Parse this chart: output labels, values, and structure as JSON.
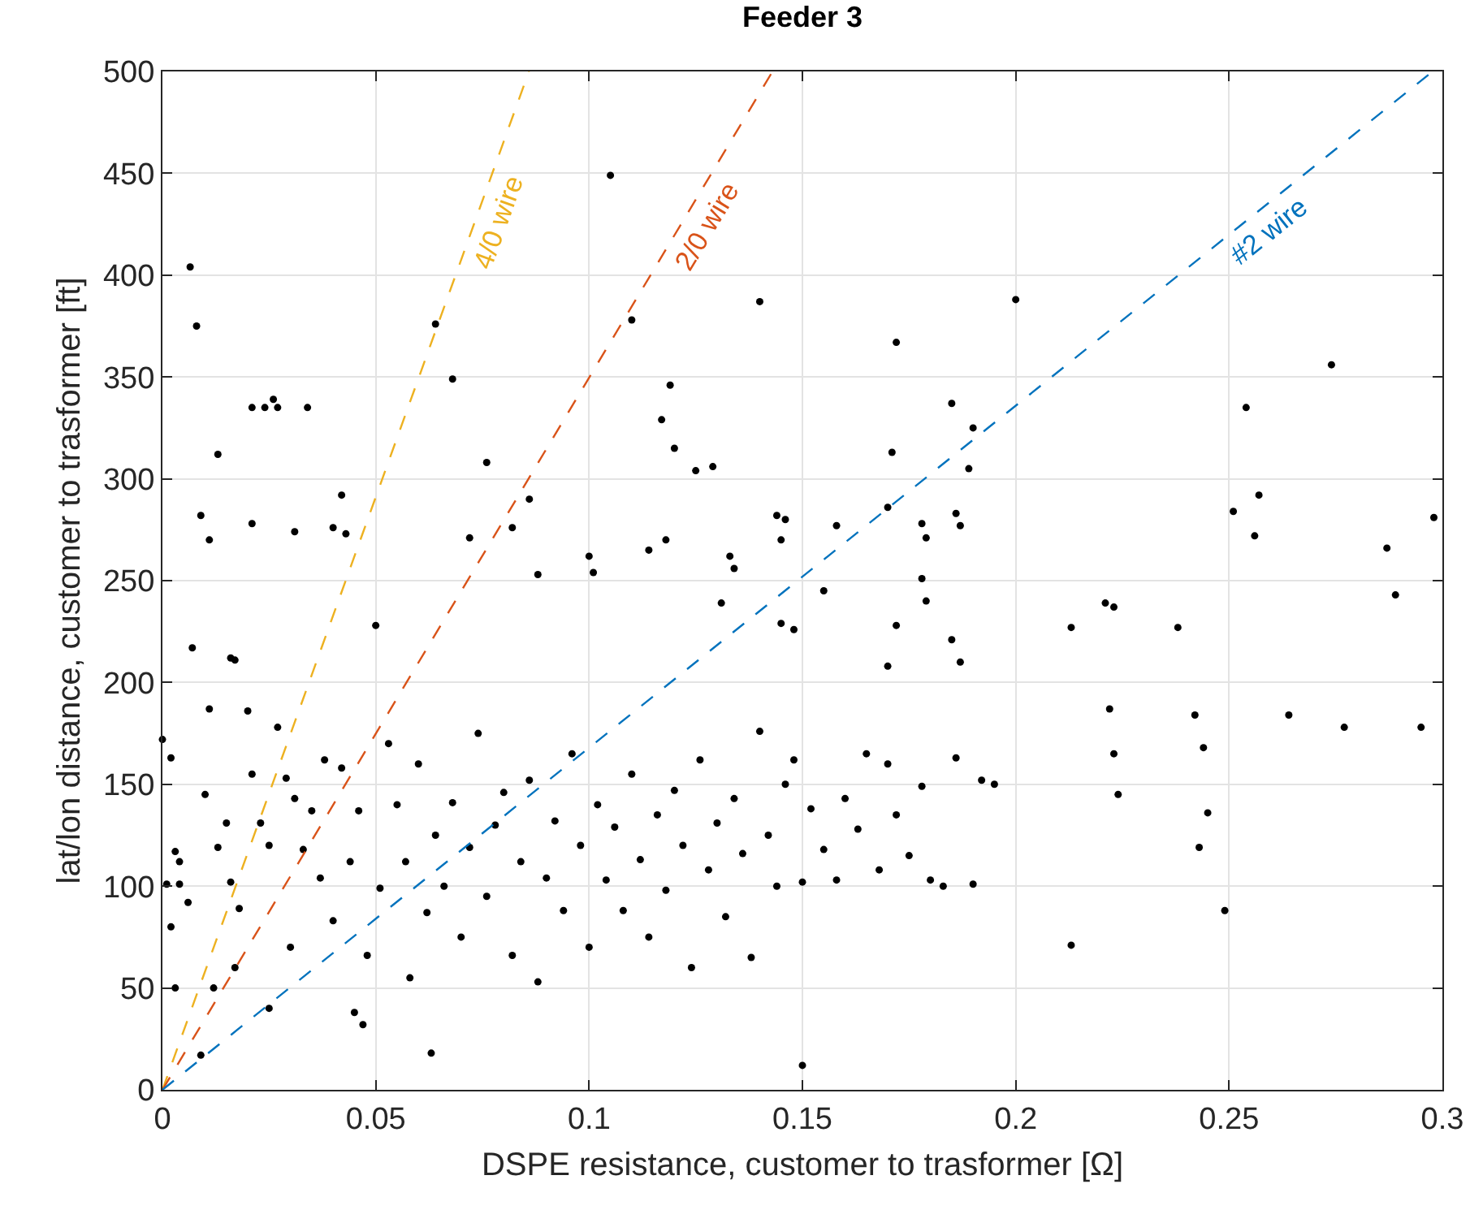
{
  "chart_data": {
    "type": "scatter",
    "title": "Feeder 3",
    "xlabel": "DSPE resistance, customer to trasformer [Ω]",
    "ylabel": "lat/lon distance, customer to trasformer [ft]",
    "xlim": [
      0,
      0.3
    ],
    "ylim": [
      0,
      500
    ],
    "xticks": [
      0,
      0.05,
      0.1,
      0.15,
      0.2,
      0.25,
      0.3
    ],
    "yticks": [
      0,
      50,
      100,
      150,
      200,
      250,
      300,
      350,
      400,
      450,
      500
    ],
    "grid": true,
    "legend": false,
    "marker": "circle",
    "series": [
      {
        "color": "#000000",
        "x": [
          0.0065,
          0.008,
          0.013,
          0.009,
          0.011,
          0.021,
          0.024,
          0.026,
          0.027,
          0.034,
          0.021,
          0.031,
          0.042,
          0.04,
          0.043,
          0.007,
          0.016,
          0.017,
          0.064,
          0.068,
          0.076,
          0.072,
          0.082,
          0.086,
          0.088,
          0.105,
          0.11,
          0.117,
          0.119,
          0.12,
          0.1,
          0.101,
          0.114,
          0.118,
          0.125,
          0.129,
          0.14,
          0.133,
          0.134,
          0.131,
          0.144,
          0.146,
          0.145,
          0.148,
          0.145,
          0.158,
          0.155,
          0.172,
          0.171,
          0.17,
          0.178,
          0.179,
          0.178,
          0.179,
          0.185,
          0.186,
          0.187,
          0.19,
          0.189,
          0.2,
          0.172,
          0.17,
          0.185,
          0.187,
          0.213,
          0.221,
          0.223,
          0.222,
          0.223,
          0.224,
          0.238,
          0.242,
          0.244,
          0.245,
          0.243,
          0.249,
          0.251,
          0.254,
          0.256,
          0.257,
          0.264,
          0.274,
          0.277,
          0.287,
          0.289,
          0.295,
          0.298,
          0.213,
          0.15,
          0.063,
          0.045,
          0.047,
          0.009,
          0.012,
          0.0,
          0.002,
          0.003,
          0.004,
          0.001,
          0.004,
          0.002,
          0.006,
          0.01,
          0.011,
          0.013,
          0.015,
          0.016,
          0.018,
          0.02,
          0.021,
          0.023,
          0.025,
          0.027,
          0.029,
          0.031,
          0.033,
          0.035,
          0.037,
          0.038,
          0.04,
          0.042,
          0.044,
          0.046,
          0.048,
          0.05,
          0.051,
          0.053,
          0.055,
          0.057,
          0.058,
          0.06,
          0.062,
          0.064,
          0.066,
          0.068,
          0.07,
          0.072,
          0.074,
          0.076,
          0.078,
          0.08,
          0.082,
          0.084,
          0.086,
          0.088,
          0.09,
          0.092,
          0.094,
          0.096,
          0.098,
          0.1,
          0.102,
          0.104,
          0.106,
          0.108,
          0.11,
          0.112,
          0.114,
          0.116,
          0.118,
          0.12,
          0.122,
          0.124,
          0.126,
          0.128,
          0.13,
          0.132,
          0.134,
          0.136,
          0.138,
          0.14,
          0.142,
          0.144,
          0.146,
          0.148,
          0.15,
          0.152,
          0.155,
          0.158,
          0.16,
          0.163,
          0.165,
          0.168,
          0.17,
          0.172,
          0.175,
          0.178,
          0.18,
          0.183,
          0.186,
          0.19,
          0.192,
          0.195,
          0.003,
          0.017,
          0.03,
          0.025
        ],
        "values": [
          404,
          375,
          312,
          282,
          270,
          335,
          335,
          339,
          335,
          335,
          278,
          274,
          292,
          276,
          273,
          217,
          212,
          211,
          376,
          349,
          308,
          271,
          276,
          290,
          253,
          449,
          378,
          329,
          346,
          315,
          262,
          254,
          265,
          270,
          304,
          306,
          387,
          262,
          256,
          239,
          282,
          280,
          270,
          226,
          229,
          277,
          245,
          367,
          313,
          286,
          278,
          271,
          251,
          240,
          337,
          283,
          277,
          325,
          305,
          388,
          228,
          208,
          221,
          210,
          227,
          239,
          237,
          187,
          165,
          145,
          227,
          184,
          168,
          136,
          119,
          88,
          284,
          335,
          272,
          292,
          184,
          356,
          178,
          266,
          243,
          178,
          281,
          71,
          12,
          18,
          38,
          32,
          17,
          50,
          172,
          163,
          117,
          112,
          101,
          101,
          80,
          92,
          145,
          187,
          119,
          131,
          102,
          89,
          186,
          155,
          131,
          120,
          178,
          153,
          143,
          118,
          137,
          104,
          162,
          83,
          158,
          112,
          137,
          66,
          228,
          99,
          170,
          140,
          112,
          55,
          160,
          87,
          125,
          100,
          141,
          75,
          119,
          175,
          95,
          130,
          146,
          66,
          112,
          152,
          53,
          104,
          132,
          88,
          165,
          120,
          70,
          140,
          103,
          129,
          88,
          155,
          113,
          75,
          135,
          98,
          147,
          120,
          60,
          162,
          108,
          131,
          85,
          143,
          116,
          65,
          176,
          125,
          100,
          150,
          162,
          102,
          138,
          118,
          103,
          143,
          128,
          165,
          108,
          160,
          135,
          115,
          149,
          103,
          100,
          163,
          101,
          152,
          150,
          50,
          60,
          70,
          40
        ]
      },
      {
        "type": "line",
        "name": "4/0 wire",
        "color": "#edb120",
        "line_style": "dashed",
        "marker": "none",
        "x": [
          0,
          0.0859
        ],
        "values": [
          0,
          500
        ]
      },
      {
        "type": "line",
        "name": "2/0 wire",
        "color": "#d95319",
        "line_style": "dashed",
        "marker": "none",
        "x": [
          0,
          0.143
        ],
        "values": [
          0,
          500
        ]
      },
      {
        "type": "line",
        "name": "#2 wire",
        "color": "#0072bd",
        "line_style": "dashed",
        "marker": "none",
        "x": [
          0,
          0.2977
        ],
        "values": [
          0,
          500
        ]
      }
    ]
  }
}
